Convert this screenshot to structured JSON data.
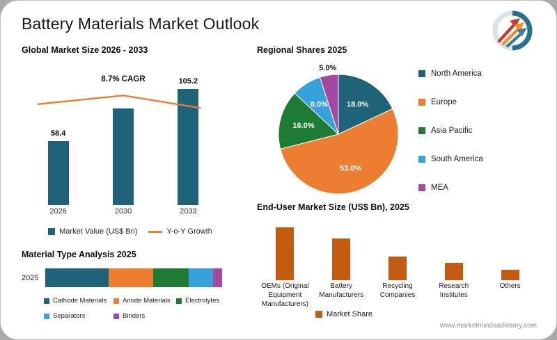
{
  "page": {
    "title": "Battery Materials Market Outlook",
    "website": "www.marketmindsadvisory.com"
  },
  "chart_data": [
    {
      "id": "global-market-size",
      "type": "bar",
      "title": "Global Market Size 2026 - 2033",
      "categories": [
        "2026",
        "2030",
        "2033"
      ],
      "series": [
        {
          "name": "Market Value (US$ Bn)",
          "type": "bar",
          "color": "#1f6378",
          "values": [
            58.4,
            87.6,
            105.2
          ],
          "labels": [
            "58.4",
            "",
            "105.2"
          ]
        },
        {
          "name": "Y-o-Y Growth",
          "type": "line",
          "color": "#ed7d31",
          "values": [
            7.8,
            8.3,
            7.5
          ]
        }
      ],
      "annotation": "8.7% CAGR",
      "ylim": [
        0,
        120
      ],
      "y2lim": [
        0,
        10
      ],
      "legend_position": "bottom",
      "grid": false
    },
    {
      "id": "regional-shares",
      "type": "pie",
      "title": "Regional Shares 2025",
      "categories": [
        "North America",
        "Europe",
        "Asia Pacific",
        "South America",
        "MEA"
      ],
      "values": [
        18.0,
        53.0,
        16.0,
        8.0,
        5.0
      ],
      "labels": [
        "18.0%",
        "53.0%",
        "16.0%",
        "8.0%",
        "5.0%"
      ],
      "colors": [
        "#1f6378",
        "#ed7d31",
        "#1e7b33",
        "#36a2dc",
        "#a349a4"
      ],
      "legend_position": "right"
    },
    {
      "id": "material-type-analysis",
      "type": "stacked-bar",
      "title": "Material Type Analysis 2025",
      "categories": [
        "2025"
      ],
      "series": [
        {
          "name": "Cathode Materials",
          "color": "#1f6378",
          "values": [
            36
          ]
        },
        {
          "name": "Anode Materials",
          "color": "#ed7d31",
          "values": [
            25
          ]
        },
        {
          "name": "Electrolytes",
          "color": "#1e7b33",
          "values": [
            20
          ]
        },
        {
          "name": "Separators",
          "color": "#36a2dc",
          "values": [
            14
          ]
        },
        {
          "name": "Binders",
          "color": "#a349a4",
          "values": [
            5
          ]
        }
      ],
      "legend_position": "bottom"
    },
    {
      "id": "end-user-market-size",
      "type": "bar",
      "title": "End-User Market Size (US$ Bn), 2025",
      "categories": [
        "OEMs (Original Equipment Manufacturers)",
        "Battery Manufacturers",
        "Recycling Companies",
        "Research Institutes",
        "Others"
      ],
      "values": [
        45,
        36,
        20,
        15,
        9
      ],
      "color": "#c55a11",
      "legend": [
        "Market Share"
      ],
      "ylim": [
        0,
        50
      ],
      "legend_position": "bottom",
      "grid": false
    }
  ]
}
